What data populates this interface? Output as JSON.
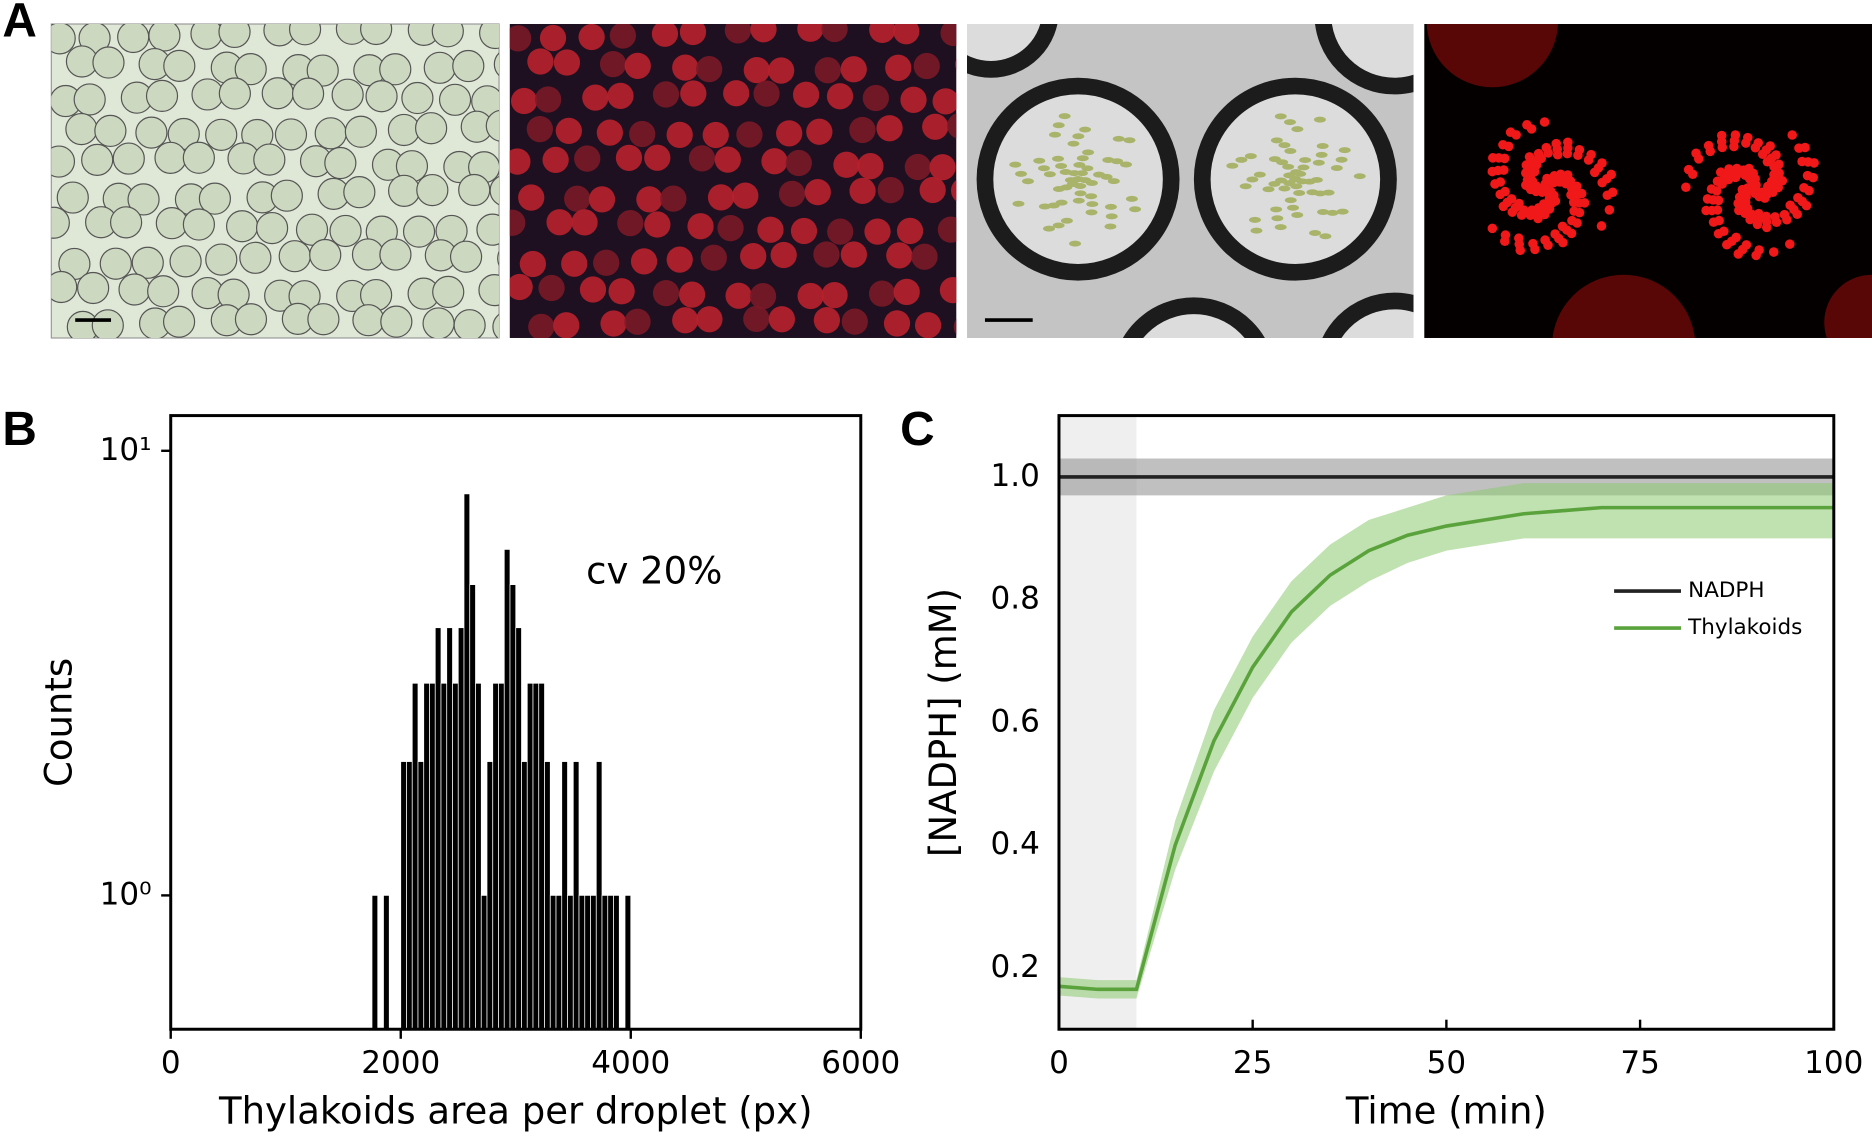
{
  "panel_labels": [
    "A",
    "B",
    "C"
  ],
  "chart_data": [
    {
      "type": "histogram",
      "x_label": "Thylakoids area per droplet (px)",
      "y_label": "Counts",
      "annotation": "cv 20%",
      "log_y": true,
      "color": "#000000",
      "xlim": [
        0,
        6000
      ],
      "xticks": [
        0,
        2000,
        4000,
        6000
      ],
      "ylim": [
        0.5,
        12
      ],
      "yticks": [
        {
          "value": 1,
          "label": "10⁰"
        },
        {
          "value": 10,
          "label": "10¹"
        }
      ],
      "bins": [
        1750,
        1800,
        1850,
        1900,
        1950,
        2000,
        2050,
        2100,
        2150,
        2200,
        2250,
        2300,
        2350,
        2400,
        2450,
        2500,
        2550,
        2600,
        2650,
        2700,
        2750,
        2800,
        2850,
        2900,
        2950,
        3000,
        3050,
        3100,
        3150,
        3200,
        3250,
        3300,
        3350,
        3400,
        3450,
        3500,
        3550,
        3600,
        3650,
        3700,
        3750,
        3800,
        3850,
        3900,
        3950,
        4000
      ],
      "counts": [
        1,
        0,
        1,
        0,
        0,
        2,
        2,
        3,
        2,
        3,
        3,
        4,
        3,
        4,
        3,
        4,
        8,
        5,
        3,
        1,
        2,
        3,
        3,
        6,
        5,
        4,
        2,
        3,
        3,
        3,
        2,
        1,
        1,
        2,
        1,
        2,
        1,
        1,
        1,
        2,
        1,
        1,
        1,
        0,
        1
      ]
    },
    {
      "type": "line",
      "x_label": "Time (min)",
      "y_label": "[NADPH] (mM)",
      "legend": "right",
      "xlim": [
        0,
        100
      ],
      "xticks": [
        0,
        25,
        50,
        75,
        100
      ],
      "ylim": [
        0.1,
        1.1
      ],
      "yticks": [
        0.2,
        0.4,
        0.6,
        0.8,
        {
          "value": 1,
          "label": "1.0"
        }
      ],
      "shaded_x": [
        0,
        10
      ],
      "x": [
        0,
        5,
        10,
        15,
        20,
        25,
        30,
        35,
        40,
        45,
        50,
        55,
        60,
        65,
        70,
        75,
        80,
        85,
        90,
        95,
        100
      ],
      "series": [
        {
          "name": "NADPH",
          "color": "#222222",
          "band_color": "#8c8c8c",
          "values": [
            1,
            1,
            1,
            1,
            1,
            1,
            1,
            1,
            1,
            1,
            1,
            1,
            1,
            1,
            1,
            1,
            1,
            1,
            1,
            1,
            1
          ],
          "lower": [
            0.97,
            0.97,
            0.97,
            0.97,
            0.97,
            0.97,
            0.97,
            0.97,
            0.97,
            0.97,
            0.97,
            0.97,
            0.97,
            0.97,
            0.97,
            0.97,
            0.97,
            0.97,
            0.97,
            0.97,
            0.97
          ],
          "upper": [
            1.03,
            1.03,
            1.03,
            1.03,
            1.03,
            1.03,
            1.03,
            1.03,
            1.03,
            1.03,
            1.03,
            1.03,
            1.03,
            1.03,
            1.03,
            1.03,
            1.03,
            1.03,
            1.03,
            1.03,
            1.03
          ]
        },
        {
          "name": "Thylakoids",
          "color": "#5aa33c",
          "band_color": "#8cc870",
          "values": [
            0.17,
            0.165,
            0.165,
            0.4,
            0.57,
            0.69,
            0.78,
            0.84,
            0.88,
            0.905,
            0.92,
            0.93,
            0.94,
            0.945,
            0.95,
            0.95,
            0.95,
            0.95,
            0.95,
            0.95,
            0.95
          ],
          "lower": [
            0.155,
            0.15,
            0.15,
            0.36,
            0.52,
            0.64,
            0.73,
            0.79,
            0.83,
            0.86,
            0.88,
            0.89,
            0.9,
            0.9,
            0.9,
            0.9,
            0.9,
            0.9,
            0.9,
            0.9,
            0.9
          ],
          "upper": [
            0.185,
            0.18,
            0.18,
            0.44,
            0.62,
            0.74,
            0.83,
            0.89,
            0.93,
            0.95,
            0.97,
            0.98,
            0.99,
            0.99,
            0.99,
            0.99,
            0.99,
            0.99,
            0.99,
            0.99,
            0.99
          ]
        }
      ]
    }
  ]
}
